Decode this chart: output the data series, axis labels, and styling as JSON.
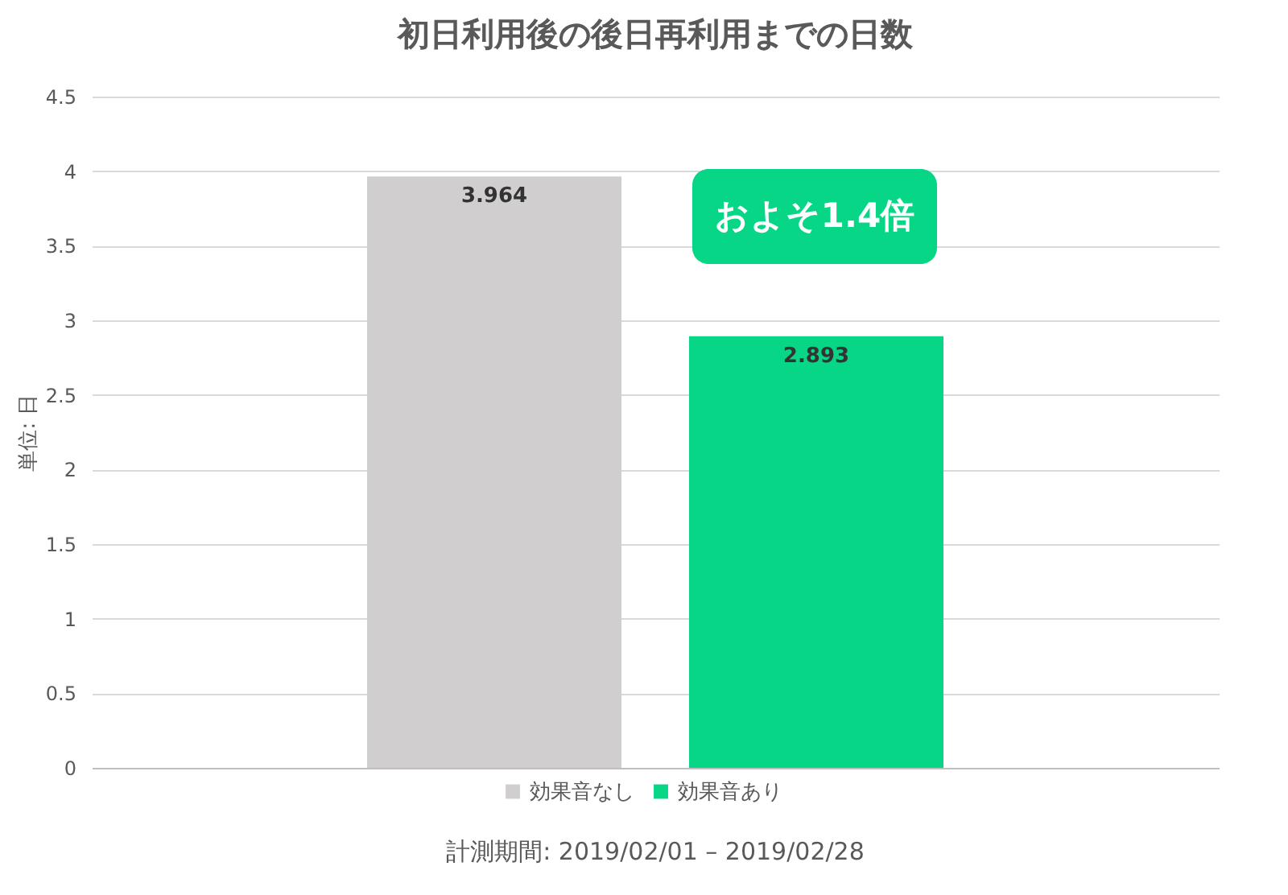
{
  "chart_data": {
    "type": "bar",
    "title": "初日利用後の後日再利用までの日数",
    "ylabel": "単位: 日",
    "categories": [
      null
    ],
    "series": [
      {
        "name": "効果音なし",
        "color": "#d0cece",
        "values": [
          3.964
        ]
      },
      {
        "name": "効果音あり",
        "color": "#06d685",
        "values": [
          2.893
        ]
      }
    ],
    "ylim": [
      0,
      4.5
    ],
    "yticks": [
      0,
      0.5,
      1,
      1.5,
      2,
      2.5,
      3,
      3.5,
      4,
      4.5
    ],
    "grid": "y",
    "legend": "bottom",
    "data_labels": true,
    "tick_labels": "y",
    "annotations": [
      "およそ1.4倍",
      "計測期間: 2019/02/01 – 2019/02/28"
    ]
  }
}
